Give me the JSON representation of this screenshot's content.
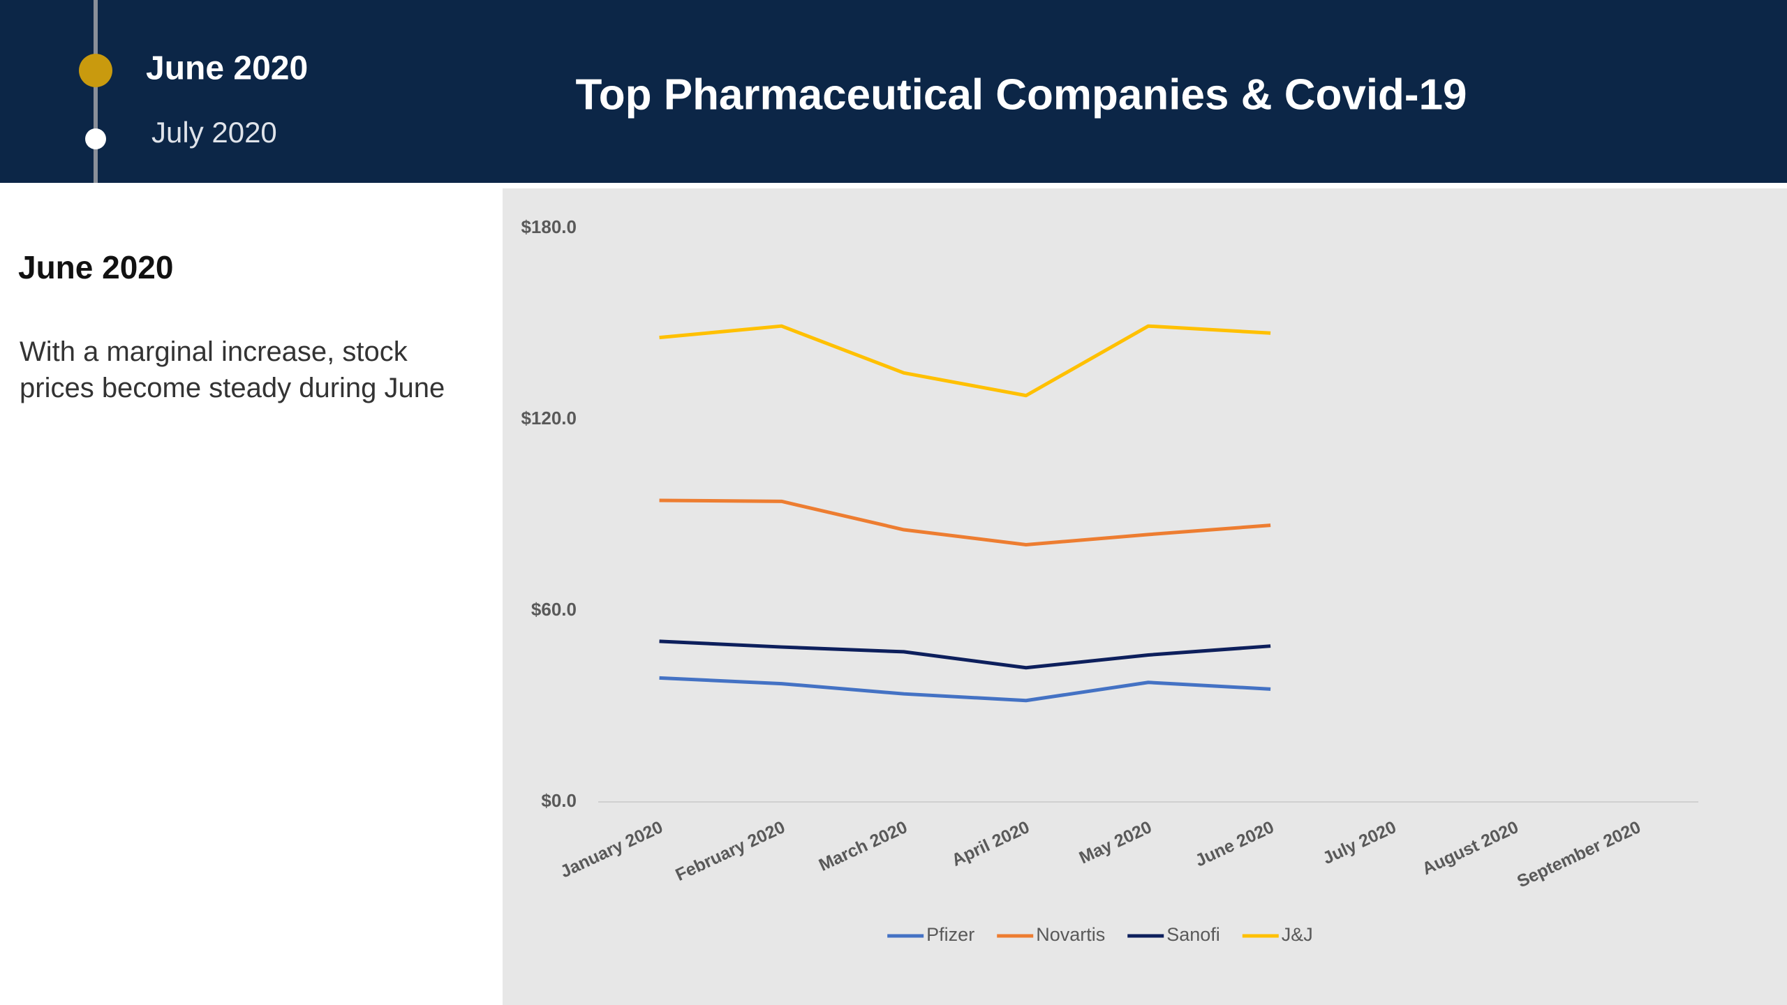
{
  "header": {
    "timeline": [
      "June 2020",
      "July 2020"
    ],
    "title": "Top Pharmaceutical Companies & Covid-19"
  },
  "sidebar": {
    "heading": "June 2020",
    "text": "With a marginal increase, stock prices become steady during June"
  },
  "chart_data": {
    "type": "line",
    "categories": [
      "January 2020",
      "February 2020",
      "March 2020",
      "April 2020",
      "May 2020",
      "June 2020",
      "July 2020",
      "August 2020",
      "September 2020"
    ],
    "series": [
      {
        "name": "Pfizer",
        "color": "#4472c4",
        "values": [
          38.9,
          37.1,
          33.9,
          31.8,
          37.5,
          35.4,
          null,
          null,
          null
        ]
      },
      {
        "name": "Novartis",
        "color": "#ed7d31",
        "values": [
          94.6,
          94.3,
          85.4,
          80.7,
          83.9,
          86.8,
          null,
          null,
          null
        ]
      },
      {
        "name": "Sanofi",
        "color": "#0d1f5c",
        "values": [
          50.4,
          48.6,
          47.1,
          42.1,
          46.1,
          48.9,
          null,
          null,
          null
        ]
      },
      {
        "name": "J&J",
        "color": "#ffc000",
        "values": [
          145.7,
          149.3,
          134.6,
          127.5,
          149.3,
          147.1,
          null,
          null,
          null
        ]
      }
    ],
    "ylim": [
      0,
      180
    ],
    "yticks": [
      {
        "value": 0,
        "label": "$0.0"
      },
      {
        "value": 60,
        "label": "$60.0"
      },
      {
        "value": 120,
        "label": "$120.0"
      },
      {
        "value": 180,
        "label": "$180.0"
      }
    ],
    "grid": false,
    "legend": "bottom"
  }
}
